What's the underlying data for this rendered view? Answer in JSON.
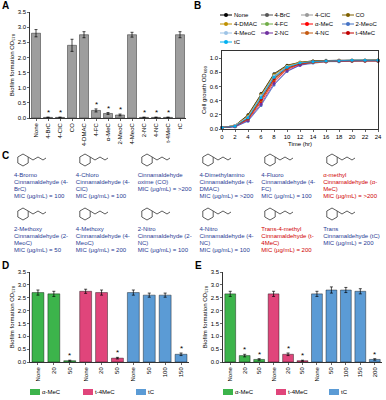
{
  "chart_data": [
    {
      "title": "A",
      "type": "bar",
      "categories": [
        "None",
        "4-BrC",
        "4-ClC",
        "CO",
        "4-DMAC",
        "4-FC",
        "α-MeC",
        "2-MeoC",
        "4-MeoC",
        "2-NC",
        "4-NC",
        "t-4MeC",
        "tC"
      ],
      "values": [
        2.8,
        0.02,
        0.02,
        2.4,
        2.75,
        0.25,
        0.15,
        0.1,
        2.75,
        0.02,
        0.02,
        0.02,
        2.75
      ],
      "errors": [
        0.12,
        0.01,
        0.01,
        0.2,
        0.1,
        0.05,
        0.03,
        0.03,
        0.08,
        0.01,
        0.01,
        0.01,
        0.1
      ],
      "significance": [
        null,
        "*",
        "*",
        null,
        null,
        "*",
        "*",
        "*",
        null,
        "*",
        "*",
        "*",
        null
      ],
      "color": "#9e9e9e",
      "y_label": "Biofilm formation OD₅₇₀",
      "ylim": [
        0,
        3.5
      ],
      "yticks": [
        {
          "value": 0,
          "label": "0.0"
        },
        0.5,
        {
          "value": 1,
          "label": "1.0"
        },
        1.5,
        {
          "value": 2,
          "label": "2.0"
        },
        2.5,
        {
          "value": 3,
          "label": "3.0"
        },
        3.5
      ]
    },
    {
      "title": "B",
      "type": "line",
      "marker": "circle",
      "x": [
        0,
        2,
        4,
        6,
        8,
        10,
        12,
        14,
        16,
        18,
        20,
        22,
        24
      ],
      "x_label": "Time (hr)",
      "y_label": "Cell growth OD₆₀₀",
      "xlim": [
        0,
        24
      ],
      "xticks": [
        0,
        2,
        4,
        6,
        8,
        10,
        12,
        14,
        16,
        18,
        20,
        22,
        24
      ],
      "ylim": [
        0,
        1.1
      ],
      "yticks": [
        {
          "value": 0,
          "label": "0.0"
        },
        0.2,
        0.4,
        0.6,
        0.8,
        {
          "value": 1,
          "label": "1.0"
        }
      ],
      "series": [
        {
          "name": "None",
          "color": "#000000",
          "values": [
            0.02,
            0.05,
            0.2,
            0.5,
            0.78,
            0.9,
            0.94,
            0.96,
            0.97,
            0.97,
            0.97,
            0.97,
            0.97
          ]
        },
        {
          "name": "4-BrC",
          "color": "#555555",
          "values": [
            0.02,
            0.04,
            0.16,
            0.45,
            0.74,
            0.88,
            0.93,
            0.95,
            0.96,
            0.96,
            0.97,
            0.97,
            0.97
          ]
        },
        {
          "name": "4-ClC",
          "color": "#999999",
          "values": [
            0.02,
            0.04,
            0.15,
            0.43,
            0.72,
            0.87,
            0.93,
            0.95,
            0.96,
            0.96,
            0.96,
            0.97,
            0.97
          ]
        },
        {
          "name": "CO",
          "color": "#7f6000",
          "values": [
            0.02,
            0.05,
            0.19,
            0.49,
            0.77,
            0.89,
            0.94,
            0.96,
            0.96,
            0.97,
            0.97,
            0.97,
            0.97
          ]
        },
        {
          "name": "4-DMAC",
          "color": "#bf9000",
          "values": [
            0.02,
            0.05,
            0.18,
            0.48,
            0.76,
            0.89,
            0.94,
            0.95,
            0.96,
            0.97,
            0.97,
            0.97,
            0.97
          ]
        },
        {
          "name": "4-FC",
          "color": "#70ad47",
          "values": [
            0.02,
            0.04,
            0.14,
            0.41,
            0.7,
            0.86,
            0.92,
            0.95,
            0.96,
            0.96,
            0.96,
            0.97,
            0.97
          ]
        },
        {
          "name": "α-MeC",
          "color": "#ff0000",
          "values": [
            0.02,
            0.04,
            0.13,
            0.38,
            0.67,
            0.84,
            0.91,
            0.94,
            0.95,
            0.96,
            0.96,
            0.96,
            0.96
          ]
        },
        {
          "name": "2-MeoC",
          "color": "#4472c4",
          "values": [
            0.02,
            0.03,
            0.11,
            0.33,
            0.62,
            0.81,
            0.9,
            0.93,
            0.95,
            0.95,
            0.96,
            0.96,
            0.96
          ]
        },
        {
          "name": "4-MeoC",
          "color": "#9dc3e6",
          "values": [
            0.02,
            0.05,
            0.17,
            0.47,
            0.75,
            0.88,
            0.93,
            0.95,
            0.96,
            0.97,
            0.97,
            0.97,
            0.97
          ]
        },
        {
          "name": "2-NC",
          "color": "#7030a0",
          "values": [
            0.02,
            0.03,
            0.12,
            0.35,
            0.64,
            0.82,
            0.9,
            0.94,
            0.95,
            0.96,
            0.96,
            0.96,
            0.96
          ]
        },
        {
          "name": "4-NC",
          "color": "#c55a11",
          "values": [
            0.02,
            0.04,
            0.14,
            0.4,
            0.69,
            0.85,
            0.92,
            0.94,
            0.95,
            0.96,
            0.96,
            0.96,
            0.96
          ]
        },
        {
          "name": "t-4MeC",
          "color": "#c00000",
          "values": [
            0.02,
            0.04,
            0.15,
            0.42,
            0.71,
            0.86,
            0.92,
            0.95,
            0.96,
            0.96,
            0.97,
            0.97,
            0.97
          ]
        },
        {
          "name": "tC",
          "color": "#00b0f0",
          "values": [
            0.02,
            0.04,
            0.16,
            0.44,
            0.73,
            0.87,
            0.93,
            0.95,
            0.96,
            0.96,
            0.97,
            0.97,
            0.97
          ]
        }
      ]
    },
    {
      "title": "D",
      "type": "bar",
      "categories": [
        "None",
        "20",
        "50",
        "None",
        "20",
        "50",
        "None",
        "50",
        "100",
        "150"
      ],
      "y_label": "Biofilm formation OD₅₇₀",
      "ylim": [
        0,
        3.5
      ],
      "yticks": [
        {
          "value": 0,
          "label": "0.0"
        },
        0.5,
        {
          "value": 1,
          "label": "1.0"
        },
        1.5,
        {
          "value": 2,
          "label": "2.0"
        },
        2.5,
        {
          "value": 3,
          "label": "3.0"
        },
        3.5
      ],
      "series": [
        {
          "name": "α-MeC",
          "color": "#3cb44b",
          "values": [
            2.7,
            2.65,
            0.05,
            null,
            null,
            null,
            null,
            null,
            null,
            null
          ],
          "errors": [
            0.1,
            0.1,
            0.02,
            null,
            null,
            null,
            null,
            null,
            null,
            null
          ],
          "significance": [
            null,
            null,
            "*",
            null,
            null,
            null,
            null,
            null,
            null,
            null
          ]
        },
        {
          "name": "t-4MeC",
          "color": "#e0457b",
          "values": [
            null,
            null,
            null,
            2.75,
            2.7,
            0.15,
            null,
            null,
            null,
            null
          ],
          "errors": [
            null,
            null,
            null,
            0.08,
            0.1,
            0.03,
            null,
            null,
            null,
            null
          ],
          "significance": [
            null,
            null,
            null,
            null,
            null,
            "*",
            null,
            null,
            null,
            null
          ]
        },
        {
          "name": "tC",
          "color": "#5b9bd5",
          "values": [
            null,
            null,
            null,
            null,
            null,
            null,
            2.7,
            2.6,
            2.6,
            0.3
          ],
          "errors": [
            null,
            null,
            null,
            null,
            null,
            null,
            0.1,
            0.08,
            0.08,
            0.05
          ],
          "significance": [
            null,
            null,
            null,
            null,
            null,
            null,
            null,
            null,
            null,
            "*"
          ]
        }
      ]
    },
    {
      "title": "E",
      "type": "bar",
      "categories": [
        "None",
        "20",
        "50",
        "None",
        "20",
        "50",
        "None",
        "50",
        "100",
        "150",
        "200"
      ],
      "y_label": "Biofilm formation OD₅₇₀",
      "ylim": [
        0,
        3.5
      ],
      "yticks": [
        {
          "value": 0,
          "label": "0.0"
        },
        0.5,
        {
          "value": 1,
          "label": "1.0"
        },
        1.5,
        {
          "value": 2,
          "label": "2.0"
        },
        2.5,
        {
          "value": 3,
          "label": "3.0"
        },
        3.5
      ],
      "series": [
        {
          "name": "α-MeC",
          "color": "#3cb44b",
          "values": [
            2.65,
            0.25,
            0.1,
            null,
            null,
            null,
            null,
            null,
            null,
            null,
            null
          ],
          "errors": [
            0.1,
            0.05,
            0.03,
            null,
            null,
            null,
            null,
            null,
            null,
            null,
            null
          ],
          "significance": [
            null,
            "*",
            "*",
            null,
            null,
            null,
            null,
            null,
            null,
            null,
            null
          ]
        },
        {
          "name": "t-4MeC",
          "color": "#e0457b",
          "values": [
            null,
            null,
            null,
            2.65,
            0.3,
            0.05,
            null,
            null,
            null,
            null,
            null
          ],
          "errors": [
            null,
            null,
            null,
            0.1,
            0.05,
            0.02,
            null,
            null,
            null,
            null,
            null
          ],
          "significance": [
            null,
            null,
            null,
            null,
            "*",
            "*",
            null,
            null,
            null,
            null,
            null
          ]
        },
        {
          "name": "tC",
          "color": "#5b9bd5",
          "values": [
            null,
            null,
            null,
            null,
            null,
            null,
            2.65,
            2.8,
            2.8,
            2.75,
            0.1
          ],
          "errors": [
            null,
            null,
            null,
            null,
            null,
            null,
            0.1,
            0.12,
            0.1,
            0.1,
            0.03
          ],
          "significance": [
            null,
            null,
            null,
            null,
            null,
            null,
            null,
            null,
            null,
            null,
            "*"
          ]
        }
      ]
    }
  ],
  "structures": {
    "title": "C",
    "items": [
      {
        "name": "4-Bromo Cinnamaldehyde",
        "abbr": "(4-BrC)",
        "mic": "MIC (μg/mL) = 100",
        "color": "#1f3a93"
      },
      {
        "name": "4-Chloro Cinnamaldehyde",
        "abbr": "(4-ClC)",
        "mic": "MIC (μg/mL) = 100",
        "color": "#1f3a93"
      },
      {
        "name": "Cinnamaldehyde oxime",
        "abbr": "(CO)",
        "mic": "MIC (μg/mL) = >200",
        "color": "#1f3a93"
      },
      {
        "name": "4-Dimethylamino Cinnamaldehyde",
        "abbr": "(4-DMAC)",
        "mic": "MIC (μg/mL) = >200",
        "color": "#1f3a93"
      },
      {
        "name": "4-Fluoro Cinnamaldehyde",
        "abbr": "(4-FC)",
        "mic": "MIC (μg/mL) = 100",
        "color": "#1f3a93"
      },
      {
        "name": "α-methyl Cinnamaldehyde",
        "abbr": "(α-MeC)",
        "mic": "MIC (μg/mL) = >200",
        "color": "#d00000"
      },
      {
        "name": "2-Methoxy Cinnamaldehyde",
        "abbr": "(2-MeoC)",
        "mic": "MIC (μg/mL) = 50",
        "color": "#1f3a93"
      },
      {
        "name": "4-Methoxy Cinnamaldehyde",
        "abbr": "(4-MeoC)",
        "mic": "MIC (μg/mL) = 200",
        "color": "#1f3a93"
      },
      {
        "name": "2-Nitro Cinnamaldehyde",
        "abbr": "(2-NC)",
        "mic": "MIC (μg/mL) = 100",
        "color": "#1f3a93"
      },
      {
        "name": "4-Nitro Cinnamaldehyde",
        "abbr": "(4-NC)",
        "mic": "MIC (μg/mL) = 100",
        "color": "#1f3a93"
      },
      {
        "name": "Trans-4-methyl Cinnamaldehyde",
        "abbr": "(t-4MeC)",
        "mic": "MIC (μg/mL) = 200",
        "color": "#d00000"
      },
      {
        "name": "Trans Cinnamaldehyde",
        "abbr": "(tC)",
        "mic": "MIC (μg/mL) = 200",
        "color": "#1f3a93"
      }
    ]
  }
}
